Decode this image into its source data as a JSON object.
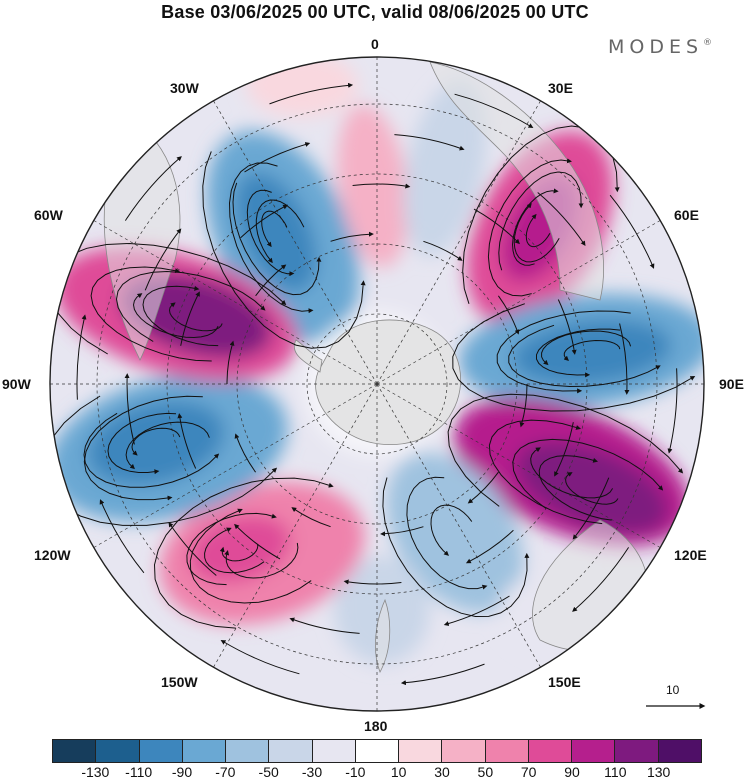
{
  "header": {
    "title": "Base 03/06/2025 00 UTC, valid 08/06/2025 00 UTC",
    "logo_text": "MODES",
    "logo_mark": "®"
  },
  "longitude_labels": [
    "0",
    "30E",
    "60E",
    "90E",
    "120E",
    "150E",
    "180",
    "150W",
    "120W",
    "90W",
    "60W",
    "30W"
  ],
  "reference_vector": {
    "label": "10"
  },
  "colorbar": {
    "ticks": [
      "-130",
      "-110",
      "-90",
      "-70",
      "-50",
      "-30",
      "-10",
      "10",
      "30",
      "50",
      "70",
      "90",
      "110",
      "130"
    ],
    "colors": [
      "#163d5c",
      "#1d5f8e",
      "#3d86bd",
      "#6aa8d3",
      "#9fc2df",
      "#c9d6e8",
      "#e7e6f1",
      "#ffffff",
      "#f9d8df",
      "#f5b1c6",
      "#ef82ac",
      "#df4b98",
      "#b51f8d",
      "#7e1a7f",
      "#4f0f67"
    ]
  },
  "palette": {
    "land": "#e2e2e2",
    "coast": "#888888",
    "grid": "#333333",
    "streamline": "#111111"
  }
}
